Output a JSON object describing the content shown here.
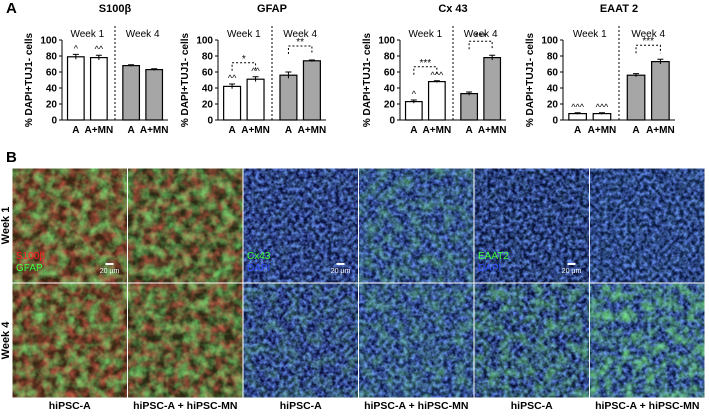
{
  "panel_labels": [
    "A",
    "B"
  ],
  "chart_data": [
    {
      "type": "bar",
      "title": "S100β",
      "ylabel": "% DAPI+TUJ1- cells",
      "ylim": [
        0,
        100
      ],
      "yticks": [
        0,
        20,
        40,
        60,
        80,
        100
      ],
      "groups": [
        "Week 1",
        "Week 4"
      ],
      "categories": [
        "A",
        "A+MN",
        "A",
        "A+MN"
      ],
      "values": [
        79,
        78,
        68,
        63
      ],
      "errors": [
        3,
        3,
        1,
        1
      ],
      "colors": [
        "#ffffff",
        "#ffffff",
        "#a6a6a6",
        "#a6a6a6"
      ],
      "bar_annotations": [
        "^",
        "^^",
        null,
        null
      ],
      "significance": [
        null,
        null
      ]
    },
    {
      "type": "bar",
      "title": "GFAP",
      "ylabel": "% DAPI+TUJ1- cells",
      "ylim": [
        0,
        100
      ],
      "yticks": [
        0,
        20,
        40,
        60,
        80,
        100
      ],
      "groups": [
        "Week 1",
        "Week 4"
      ],
      "categories": [
        "A",
        "A+MN",
        "A",
        "A+MN"
      ],
      "values": [
        42,
        51,
        56,
        74
      ],
      "errors": [
        3,
        3,
        4,
        1
      ],
      "colors": [
        "#ffffff",
        "#ffffff",
        "#a6a6a6",
        "#a6a6a6"
      ],
      "bar_annotations": [
        "^^",
        "^^",
        null,
        null
      ],
      "significance": [
        "*",
        "**"
      ]
    },
    {
      "type": "bar",
      "title": "Cx 43",
      "ylabel": "% DAPI+TUJ1- cells",
      "ylim": [
        0,
        100
      ],
      "yticks": [
        0,
        20,
        40,
        60,
        80,
        100
      ],
      "groups": [
        "Week 1",
        "Week 4"
      ],
      "categories": [
        "A",
        "A+MN",
        "A",
        "A+MN"
      ],
      "values": [
        23,
        48,
        33,
        78
      ],
      "errors": [
        2,
        1,
        2,
        3
      ],
      "colors": [
        "#ffffff",
        "#ffffff",
        "#a6a6a6",
        "#a6a6a6"
      ],
      "bar_annotations": [
        "^",
        "^^^",
        null,
        null
      ],
      "significance": [
        "***",
        "***"
      ]
    },
    {
      "type": "bar",
      "title": "EAAT 2",
      "ylabel": "% DAPI+TUJ1- cells",
      "ylim": [
        0,
        100
      ],
      "yticks": [
        0,
        20,
        40,
        60,
        80,
        100
      ],
      "groups": [
        "Week 1",
        "Week 4"
      ],
      "categories": [
        "A",
        "A+MN",
        "A",
        "A+MN"
      ],
      "values": [
        8,
        8,
        56,
        73
      ],
      "errors": [
        1,
        1,
        2,
        3
      ],
      "colors": [
        "#ffffff",
        "#ffffff",
        "#a6a6a6",
        "#a6a6a6"
      ],
      "bar_annotations": [
        "^^^",
        "^^^",
        null,
        null
      ],
      "significance": [
        null,
        "***"
      ]
    }
  ],
  "panel_b": {
    "row_labels": [
      "Week 1",
      "Week 4"
    ],
    "column_labels": [
      "hiPSC-A",
      "hiPSC-A + hiPSC-MN",
      "hiPSC-A",
      "hiPSC-A + hiPSC-MN",
      "hiPSC-A",
      "hiPSC-A + hiPSC-MN"
    ],
    "stain_labels": [
      [
        "S100β",
        "GFAP"
      ],
      [
        "Cx43",
        "DAPI"
      ],
      [
        "EAAT2",
        "DAPI"
      ]
    ],
    "scale_bar": "20 µm"
  }
}
